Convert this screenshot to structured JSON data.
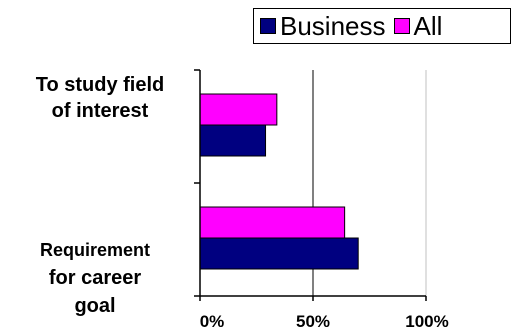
{
  "chart_data": {
    "type": "bar",
    "orientation": "horizontal",
    "categories": [
      "To study field of interest",
      "Requirement for career goal"
    ],
    "category_lines": [
      [
        "To study field",
        "of interest"
      ],
      [
        "Requirement",
        "for career",
        "goal"
      ]
    ],
    "series": [
      {
        "name": "Business",
        "color": "#000080",
        "values": [
          29,
          70
        ]
      },
      {
        "name": "All",
        "color": "#ff00ff",
        "values": [
          34,
          64
        ]
      }
    ],
    "xlim": [
      0,
      100
    ],
    "x_ticks": [
      "0%",
      "50%",
      "100%"
    ],
    "grid": true,
    "legend_position": "top-right",
    "title": "",
    "xlabel": "",
    "ylabel": ""
  }
}
